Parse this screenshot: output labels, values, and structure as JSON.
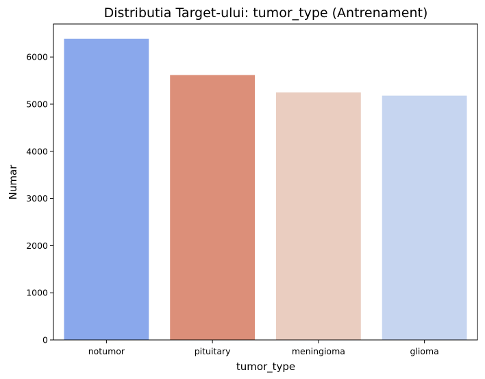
{
  "chart_data": {
    "type": "bar",
    "title": "Distributia Target-ului: tumor_type (Antrenament)",
    "xlabel": "tumor_type",
    "ylabel": "Numar",
    "categories": [
      "notumor",
      "pituitary",
      "meningioma",
      "glioma"
    ],
    "values": [
      6385,
      5618,
      5250,
      5180
    ],
    "colors": [
      "#8aa8ec",
      "#dc8f79",
      "#eacdc0",
      "#c6d5f0"
    ],
    "ylim": [
      0,
      6700
    ],
    "yticks": [
      0,
      1000,
      2000,
      3000,
      4000,
      5000,
      6000
    ],
    "grid": false,
    "legend": "none"
  }
}
